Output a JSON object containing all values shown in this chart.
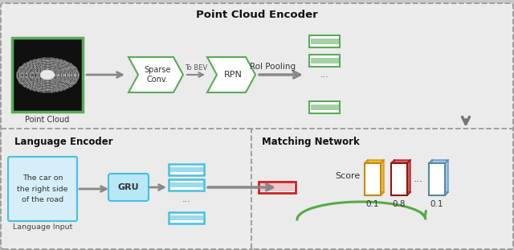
{
  "title_top": "Point Cloud Encoder",
  "title_bottom_left": "Language Encoder",
  "title_bottom_right": "Matching Network",
  "panel_bg": "#ebebeb",
  "outer_bg": "#c8c8c8",
  "green_color": "#5aaa5a",
  "blue_color": "#45c0e0",
  "blue_fill": "#b8e8f8",
  "arrow_color": "#888888",
  "point_cloud_label": "Point Cloud",
  "sparse_conv_label": "Sparse\nConv.",
  "to_bev_label": "To BEV",
  "rpn_label": "RPN",
  "roi_pooling_label": "RoI Pooling",
  "language_input_label": "Language Input",
  "gru_label": "GRU",
  "score_label": "Score",
  "score_values": [
    "0.1",
    "0.8",
    "0.1"
  ],
  "language_text": "The car on\nthe right side\nof the road",
  "yellow_color": "#f0a800",
  "red_color": "#cc2222",
  "lightblue_color": "#88bbdd",
  "green_arrow_color": "#55aa44"
}
